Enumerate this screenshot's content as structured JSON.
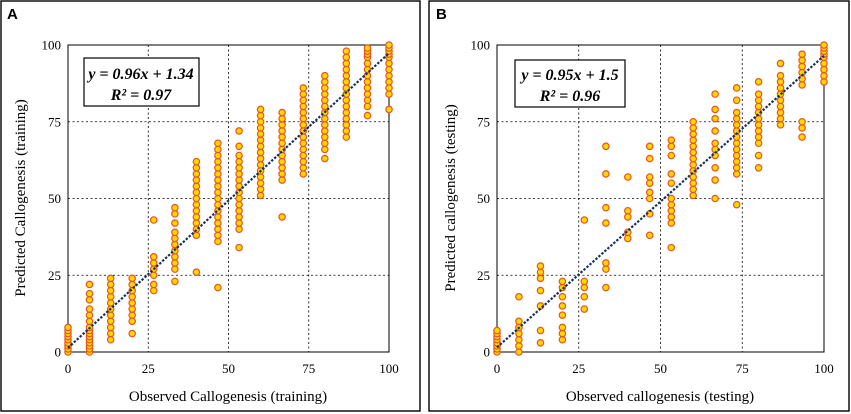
{
  "colors": {
    "point_fill": "#ffd700",
    "point_edge": "#e8541e",
    "fit_line": "#16325c"
  },
  "chart_data": [
    {
      "type": "scatter",
      "panel": "A",
      "xlabel": "Observed Callogenesis (training)",
      "ylabel": "Predicted Callogenesis (training)",
      "xlim": [
        0,
        100
      ],
      "ylim": [
        0,
        100
      ],
      "xticks": [
        0,
        25,
        50,
        75,
        100
      ],
      "yticks": [
        0,
        25,
        50,
        75,
        100
      ],
      "grid": true,
      "equation": "y = 0.96x + 1.34",
      "r2": "R² = 0.97",
      "fit": {
        "slope": 0.96,
        "intercept": 1.34
      },
      "points": [
        [
          0,
          0
        ],
        [
          0,
          1
        ],
        [
          0,
          2
        ],
        [
          0,
          3
        ],
        [
          0,
          4
        ],
        [
          0,
          5
        ],
        [
          0,
          6
        ],
        [
          0,
          7
        ],
        [
          0,
          8
        ],
        [
          6.7,
          0
        ],
        [
          6.7,
          1
        ],
        [
          6.7,
          2
        ],
        [
          6.7,
          3
        ],
        [
          6.7,
          4
        ],
        [
          6.7,
          5
        ],
        [
          6.7,
          6
        ],
        [
          6.7,
          7
        ],
        [
          6.7,
          8
        ],
        [
          6.7,
          10
        ],
        [
          6.7,
          12
        ],
        [
          6.7,
          14
        ],
        [
          6.7,
          17
        ],
        [
          6.7,
          19
        ],
        [
          6.7,
          22
        ],
        [
          13.3,
          4
        ],
        [
          13.3,
          6
        ],
        [
          13.3,
          8
        ],
        [
          13.3,
          10
        ],
        [
          13.3,
          12
        ],
        [
          13.3,
          14
        ],
        [
          13.3,
          16
        ],
        [
          13.3,
          18
        ],
        [
          13.3,
          20
        ],
        [
          13.3,
          22
        ],
        [
          13.3,
          24
        ],
        [
          20,
          6
        ],
        [
          20,
          10
        ],
        [
          20,
          12
        ],
        [
          20,
          14
        ],
        [
          20,
          16
        ],
        [
          20,
          18
        ],
        [
          20,
          20
        ],
        [
          20,
          22
        ],
        [
          20,
          24
        ],
        [
          26.7,
          20
        ],
        [
          26.7,
          22
        ],
        [
          26.7,
          25
        ],
        [
          26.7,
          27
        ],
        [
          26.7,
          29
        ],
        [
          26.7,
          31
        ],
        [
          26.7,
          43
        ],
        [
          33.3,
          23
        ],
        [
          33.3,
          27
        ],
        [
          33.3,
          29
        ],
        [
          33.3,
          31
        ],
        [
          33.3,
          33
        ],
        [
          33.3,
          35
        ],
        [
          33.3,
          37
        ],
        [
          33.3,
          39
        ],
        [
          33.3,
          42
        ],
        [
          33.3,
          45
        ],
        [
          33.3,
          47
        ],
        [
          40,
          26
        ],
        [
          40,
          38
        ],
        [
          40,
          40
        ],
        [
          40,
          42
        ],
        [
          40,
          44
        ],
        [
          40,
          46
        ],
        [
          40,
          48
        ],
        [
          40,
          50
        ],
        [
          40,
          52
        ],
        [
          40,
          54
        ],
        [
          40,
          56
        ],
        [
          40,
          58
        ],
        [
          40,
          60
        ],
        [
          40,
          62
        ],
        [
          46.7,
          21
        ],
        [
          46.7,
          36
        ],
        [
          46.7,
          38
        ],
        [
          46.7,
          40
        ],
        [
          46.7,
          42
        ],
        [
          46.7,
          44
        ],
        [
          46.7,
          46
        ],
        [
          46.7,
          48
        ],
        [
          46.7,
          50
        ],
        [
          46.7,
          52
        ],
        [
          46.7,
          54
        ],
        [
          46.7,
          56
        ],
        [
          46.7,
          58
        ],
        [
          46.7,
          60
        ],
        [
          46.7,
          62
        ],
        [
          46.7,
          64
        ],
        [
          46.7,
          66
        ],
        [
          46.7,
          68
        ],
        [
          53.3,
          34
        ],
        [
          53.3,
          40
        ],
        [
          53.3,
          42
        ],
        [
          53.3,
          44
        ],
        [
          53.3,
          46
        ],
        [
          53.3,
          48
        ],
        [
          53.3,
          50
        ],
        [
          53.3,
          52
        ],
        [
          53.3,
          54
        ],
        [
          53.3,
          56
        ],
        [
          53.3,
          58
        ],
        [
          53.3,
          60
        ],
        [
          53.3,
          62
        ],
        [
          53.3,
          64
        ],
        [
          53.3,
          67
        ],
        [
          53.3,
          72
        ],
        [
          60,
          51
        ],
        [
          60,
          53
        ],
        [
          60,
          55
        ],
        [
          60,
          57
        ],
        [
          60,
          59
        ],
        [
          60,
          61
        ],
        [
          60,
          63
        ],
        [
          60,
          65
        ],
        [
          60,
          67
        ],
        [
          60,
          69
        ],
        [
          60,
          71
        ],
        [
          60,
          73
        ],
        [
          60,
          75
        ],
        [
          60,
          77
        ],
        [
          60,
          79
        ],
        [
          66.7,
          44
        ],
        [
          66.7,
          56
        ],
        [
          66.7,
          58
        ],
        [
          66.7,
          60
        ],
        [
          66.7,
          62
        ],
        [
          66.7,
          64
        ],
        [
          66.7,
          66
        ],
        [
          66.7,
          68
        ],
        [
          66.7,
          70
        ],
        [
          66.7,
          72
        ],
        [
          66.7,
          74
        ],
        [
          66.7,
          76
        ],
        [
          66.7,
          78
        ],
        [
          73.3,
          58
        ],
        [
          73.3,
          60
        ],
        [
          73.3,
          62
        ],
        [
          73.3,
          64
        ],
        [
          73.3,
          66
        ],
        [
          73.3,
          68
        ],
        [
          73.3,
          70
        ],
        [
          73.3,
          72
        ],
        [
          73.3,
          74
        ],
        [
          73.3,
          76
        ],
        [
          73.3,
          78
        ],
        [
          73.3,
          80
        ],
        [
          73.3,
          82
        ],
        [
          73.3,
          84
        ],
        [
          73.3,
          86
        ],
        [
          80,
          63
        ],
        [
          80,
          66
        ],
        [
          80,
          68
        ],
        [
          80,
          70
        ],
        [
          80,
          72
        ],
        [
          80,
          74
        ],
        [
          80,
          76
        ],
        [
          80,
          78
        ],
        [
          80,
          80
        ],
        [
          80,
          82
        ],
        [
          80,
          84
        ],
        [
          80,
          86
        ],
        [
          80,
          88
        ],
        [
          80,
          90
        ],
        [
          86.7,
          70
        ],
        [
          86.7,
          72
        ],
        [
          86.7,
          74
        ],
        [
          86.7,
          76
        ],
        [
          86.7,
          78
        ],
        [
          86.7,
          80
        ],
        [
          86.7,
          82
        ],
        [
          86.7,
          84
        ],
        [
          86.7,
          86
        ],
        [
          86.7,
          88
        ],
        [
          86.7,
          90
        ],
        [
          86.7,
          92
        ],
        [
          86.7,
          94
        ],
        [
          86.7,
          96
        ],
        [
          86.7,
          98
        ],
        [
          93.3,
          77
        ],
        [
          93.3,
          80
        ],
        [
          93.3,
          82
        ],
        [
          93.3,
          84
        ],
        [
          93.3,
          86
        ],
        [
          93.3,
          88
        ],
        [
          93.3,
          90
        ],
        [
          93.3,
          92
        ],
        [
          93.3,
          94
        ],
        [
          93.3,
          96
        ],
        [
          93.3,
          97
        ],
        [
          93.3,
          98
        ],
        [
          93.3,
          99
        ],
        [
          100,
          79
        ],
        [
          100,
          84
        ],
        [
          100,
          86
        ],
        [
          100,
          88
        ],
        [
          100,
          90
        ],
        [
          100,
          92
        ],
        [
          100,
          94
        ],
        [
          100,
          96
        ],
        [
          100,
          97
        ],
        [
          100,
          98
        ],
        [
          100,
          99
        ],
        [
          100,
          100
        ]
      ]
    },
    {
      "type": "scatter",
      "panel": "B",
      "xlabel": "Observed callogenesis (testing)",
      "ylabel": "Predicted callogenesis (testing)",
      "xlim": [
        0,
        100
      ],
      "ylim": [
        0,
        100
      ],
      "xticks": [
        0,
        25,
        50,
        75,
        100
      ],
      "yticks": [
        0,
        25,
        50,
        75,
        100
      ],
      "grid": true,
      "equation": "y = 0.95x + 1.5",
      "r2": "R² = 0.96",
      "fit": {
        "slope": 0.95,
        "intercept": 1.5
      },
      "points": [
        [
          0,
          0
        ],
        [
          0,
          1
        ],
        [
          0,
          2
        ],
        [
          0,
          3
        ],
        [
          0,
          4
        ],
        [
          0,
          5
        ],
        [
          0,
          6
        ],
        [
          0,
          7
        ],
        [
          6.7,
          0
        ],
        [
          6.7,
          2
        ],
        [
          6.7,
          4
        ],
        [
          6.7,
          6
        ],
        [
          6.7,
          8
        ],
        [
          6.7,
          10
        ],
        [
          6.7,
          18
        ],
        [
          13.3,
          3
        ],
        [
          13.3,
          7
        ],
        [
          13.3,
          15
        ],
        [
          13.3,
          20
        ],
        [
          13.3,
          24
        ],
        [
          13.3,
          26
        ],
        [
          13.3,
          28
        ],
        [
          20,
          4
        ],
        [
          20,
          6
        ],
        [
          20,
          8
        ],
        [
          20,
          12
        ],
        [
          20,
          15
        ],
        [
          20,
          18
        ],
        [
          20,
          21
        ],
        [
          20,
          23
        ],
        [
          26.7,
          14
        ],
        [
          26.7,
          18
        ],
        [
          26.7,
          21
        ],
        [
          26.7,
          23
        ],
        [
          26.7,
          43
        ],
        [
          33.3,
          21
        ],
        [
          33.3,
          27
        ],
        [
          33.3,
          29
        ],
        [
          33.3,
          42
        ],
        [
          33.3,
          47
        ],
        [
          33.3,
          58
        ],
        [
          33.3,
          67
        ],
        [
          40,
          37
        ],
        [
          40,
          39
        ],
        [
          40,
          44
        ],
        [
          40,
          46
        ],
        [
          40,
          57
        ],
        [
          46.7,
          38
        ],
        [
          46.7,
          45
        ],
        [
          46.7,
          50
        ],
        [
          46.7,
          52
        ],
        [
          46.7,
          55
        ],
        [
          46.7,
          57
        ],
        [
          46.7,
          63
        ],
        [
          46.7,
          67
        ],
        [
          53.3,
          34
        ],
        [
          53.3,
          42
        ],
        [
          53.3,
          44
        ],
        [
          53.3,
          46
        ],
        [
          53.3,
          48
        ],
        [
          53.3,
          50
        ],
        [
          53.3,
          55
        ],
        [
          53.3,
          58
        ],
        [
          53.3,
          64
        ],
        [
          53.3,
          67
        ],
        [
          53.3,
          69
        ],
        [
          60,
          51
        ],
        [
          60,
          53
        ],
        [
          60,
          55
        ],
        [
          60,
          57
        ],
        [
          60,
          59
        ],
        [
          60,
          61
        ],
        [
          60,
          63
        ],
        [
          60,
          65
        ],
        [
          60,
          67
        ],
        [
          60,
          69
        ],
        [
          60,
          71
        ],
        [
          60,
          73
        ],
        [
          60,
          75
        ],
        [
          66.7,
          50
        ],
        [
          66.7,
          56
        ],
        [
          66.7,
          60
        ],
        [
          66.7,
          64
        ],
        [
          66.7,
          66
        ],
        [
          66.7,
          68
        ],
        [
          66.7,
          72
        ],
        [
          66.7,
          76
        ],
        [
          66.7,
          79
        ],
        [
          66.7,
          84
        ],
        [
          73.3,
          48
        ],
        [
          73.3,
          58
        ],
        [
          73.3,
          60
        ],
        [
          73.3,
          62
        ],
        [
          73.3,
          64
        ],
        [
          73.3,
          66
        ],
        [
          73.3,
          68
        ],
        [
          73.3,
          70
        ],
        [
          73.3,
          72
        ],
        [
          73.3,
          74
        ],
        [
          73.3,
          76
        ],
        [
          73.3,
          78
        ],
        [
          73.3,
          82
        ],
        [
          73.3,
          86
        ],
        [
          80,
          60
        ],
        [
          80,
          64
        ],
        [
          80,
          68
        ],
        [
          80,
          70
        ],
        [
          80,
          72
        ],
        [
          80,
          74
        ],
        [
          80,
          76
        ],
        [
          80,
          78
        ],
        [
          80,
          80
        ],
        [
          80,
          82
        ],
        [
          80,
          84
        ],
        [
          80,
          88
        ],
        [
          86.7,
          74
        ],
        [
          86.7,
          76
        ],
        [
          86.7,
          78
        ],
        [
          86.7,
          80
        ],
        [
          86.7,
          82
        ],
        [
          86.7,
          84
        ],
        [
          86.7,
          86
        ],
        [
          86.7,
          88
        ],
        [
          86.7,
          90
        ],
        [
          86.7,
          94
        ],
        [
          93.3,
          70
        ],
        [
          93.3,
          73
        ],
        [
          93.3,
          75
        ],
        [
          93.3,
          87
        ],
        [
          93.3,
          89
        ],
        [
          93.3,
          91
        ],
        [
          93.3,
          93
        ],
        [
          93.3,
          95
        ],
        [
          93.3,
          97
        ],
        [
          100,
          88
        ],
        [
          100,
          90
        ],
        [
          100,
          92
        ],
        [
          100,
          94
        ],
        [
          100,
          96
        ],
        [
          100,
          97
        ],
        [
          100,
          98
        ],
        [
          100,
          99
        ],
        [
          100,
          100
        ]
      ]
    }
  ]
}
